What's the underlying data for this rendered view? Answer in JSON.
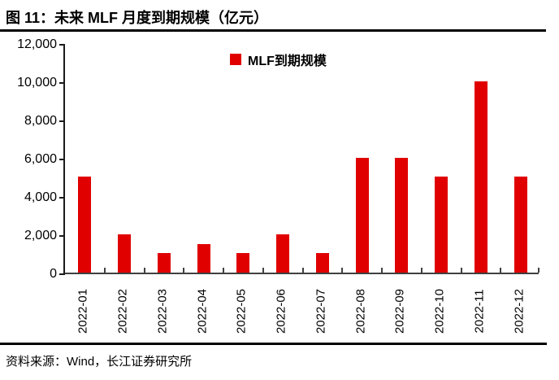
{
  "figure": {
    "number_and_title": "图 11：未来 MLF 月度到期规模（亿元）",
    "source": "资料来源：Wind，长江证券研究所"
  },
  "legend": {
    "label": "MLF到期规模",
    "swatch_color": "#e00000"
  },
  "chart_data": {
    "type": "bar",
    "title": "图 11：未来 MLF 月度到期规模（亿元）",
    "xlabel": "",
    "ylabel": "",
    "categories": [
      "2022-01",
      "2022-02",
      "2022-03",
      "2022-04",
      "2022-05",
      "2022-06",
      "2022-07",
      "2022-08",
      "2022-09",
      "2022-10",
      "2022-11",
      "2022-12"
    ],
    "series": [
      {
        "name": "MLF到期规模",
        "values": [
          5000,
          2000,
          1000,
          1500,
          1000,
          2000,
          1000,
          6000,
          6000,
          5000,
          10000,
          5000
        ],
        "color": "#e00000"
      }
    ],
    "ylim": [
      0,
      12000
    ],
    "ytick_interval": 2000,
    "ytick_labels": [
      "0",
      "2,000",
      "4,000",
      "6,000",
      "8,000",
      "10,000",
      "12,000"
    ],
    "grid": false,
    "legend_position": "top-center",
    "x_tick_style": "inside-at-category-boundaries",
    "x_label_rotation_deg": 90
  }
}
